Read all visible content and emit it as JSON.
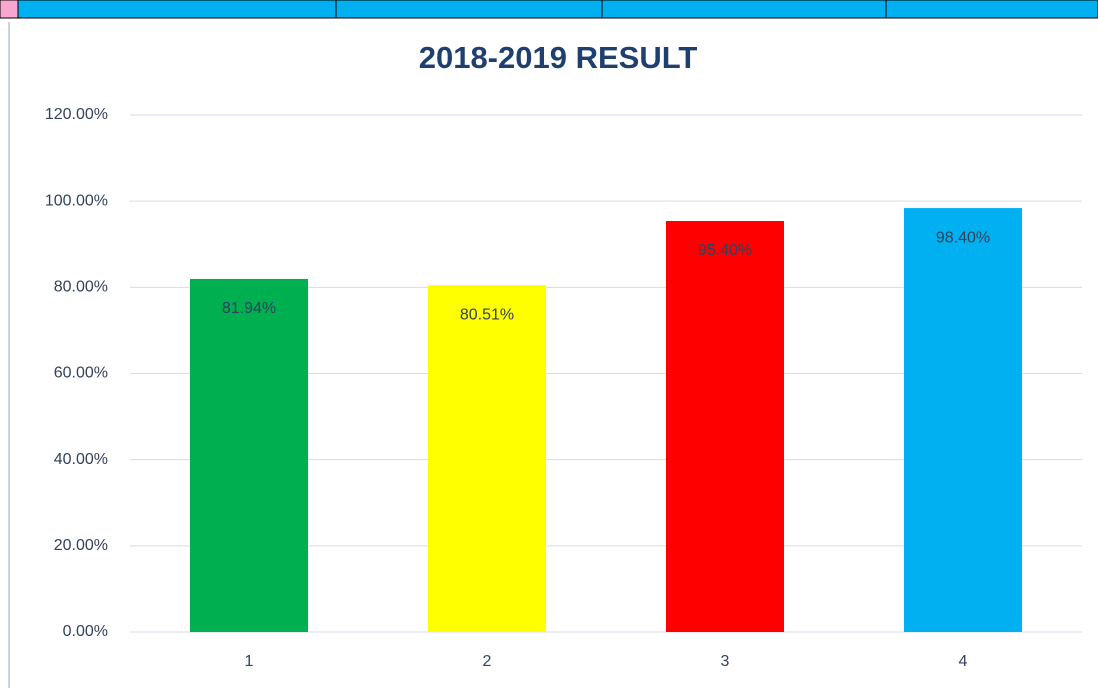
{
  "chart_data": {
    "type": "bar",
    "title": "2018-2019 RESULT",
    "categories": [
      "1",
      "2",
      "3",
      "4"
    ],
    "values": [
      81.94,
      80.51,
      95.4,
      98.4
    ],
    "value_labels": [
      "81.94%",
      "80.51%",
      "95.40%",
      "98.40%"
    ],
    "colors": [
      "#00b050",
      "#ffff00",
      "#ff0000",
      "#00b0f0"
    ],
    "ylim": [
      0,
      120
    ],
    "yticks": [
      {
        "value": 0,
        "label": "0.00%"
      },
      {
        "value": 20,
        "label": "20.00%"
      },
      {
        "value": 40,
        "label": "40.00%"
      },
      {
        "value": 60,
        "label": "60.00%"
      },
      {
        "value": 80,
        "label": "80.00%"
      },
      {
        "value": 100,
        "label": "100.00%"
      },
      {
        "value": 120,
        "label": "120.00%"
      }
    ],
    "grid": true
  }
}
